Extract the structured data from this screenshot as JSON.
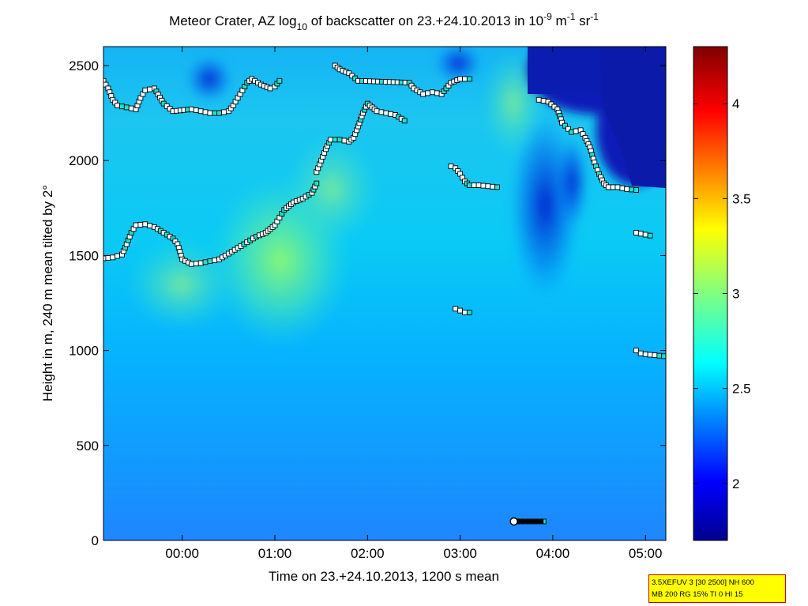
{
  "chart_data": {
    "type": "heatmap",
    "title": {
      "pre": "Meteor Crater, AZ log",
      "sub": "10",
      "mid": " of backscatter on 23.+24.10.2013 in 10",
      "sup1": "-9",
      "mid2": " m",
      "sup2": "-1",
      "mid3": " sr",
      "sup3": "-1"
    },
    "xlabel": "Time on 23.+24.10.2013, 1200 s mean",
    "ylabel": "Height in m, 240 m mean tilted by 2°",
    "xlim_hours": [
      -0.85,
      5.22
    ],
    "ylim": [
      0,
      2600
    ],
    "x_ticks": [
      {
        "value": 0,
        "label": "00:00"
      },
      {
        "value": 1,
        "label": "01:00"
      },
      {
        "value": 2,
        "label": "02:00"
      },
      {
        "value": 3,
        "label": "03:00"
      },
      {
        "value": 4,
        "label": "04:00"
      },
      {
        "value": 5,
        "label": "05:00"
      }
    ],
    "y_ticks": [
      {
        "value": 0,
        "label": "0"
      },
      {
        "value": 500,
        "label": "500"
      },
      {
        "value": 1000,
        "label": "1000"
      },
      {
        "value": 1500,
        "label": "1500"
      },
      {
        "value": 2000,
        "label": "2000"
      },
      {
        "value": 2500,
        "label": "2500"
      }
    ],
    "colorbar": {
      "range": [
        1.7,
        4.3
      ],
      "ticks": [
        {
          "value": 2,
          "label": "2"
        },
        {
          "value": 2.5,
          "label": "2.5"
        },
        {
          "value": 3,
          "label": "3"
        },
        {
          "value": 3.5,
          "label": "3.5"
        },
        {
          "value": 4,
          "label": "4"
        }
      ],
      "colormap": "jet"
    },
    "cloud_layers": [
      {
        "name": "layer-1",
        "points": [
          [
            -0.85,
            1485
          ],
          [
            -0.75,
            1490
          ],
          [
            -0.65,
            1505
          ],
          [
            -0.6,
            1560
          ],
          [
            -0.55,
            1620
          ],
          [
            -0.5,
            1660
          ],
          [
            -0.4,
            1665
          ],
          [
            -0.3,
            1650
          ],
          [
            -0.2,
            1620
          ],
          [
            -0.1,
            1590
          ],
          [
            -0.05,
            1560
          ],
          [
            0,
            1480
          ],
          [
            0.1,
            1455
          ],
          [
            0.2,
            1460
          ],
          [
            0.3,
            1470
          ],
          [
            0.4,
            1480
          ],
          [
            0.5,
            1510
          ],
          [
            0.6,
            1540
          ],
          [
            0.7,
            1570
          ],
          [
            0.8,
            1600
          ],
          [
            0.9,
            1620
          ],
          [
            0.95,
            1640
          ],
          [
            1.0,
            1660
          ],
          [
            1.05,
            1700
          ],
          [
            1.1,
            1740
          ],
          [
            1.15,
            1760
          ],
          [
            1.2,
            1780
          ],
          [
            1.3,
            1800
          ],
          [
            1.4,
            1830
          ],
          [
            1.45,
            1880
          ]
        ]
      },
      {
        "name": "layer-2",
        "points": [
          [
            1.45,
            1940
          ],
          [
            1.5,
            2000
          ],
          [
            1.55,
            2060
          ],
          [
            1.6,
            2110
          ],
          [
            1.7,
            2110
          ],
          [
            1.8,
            2100
          ],
          [
            1.85,
            2120
          ],
          [
            1.9,
            2180
          ],
          [
            1.95,
            2250
          ],
          [
            2.0,
            2300
          ],
          [
            2.05,
            2280
          ],
          [
            2.1,
            2260
          ],
          [
            2.2,
            2250
          ],
          [
            2.3,
            2240
          ],
          [
            2.4,
            2210
          ]
        ]
      },
      {
        "name": "layer-3",
        "points": [
          [
            -0.85,
            2420
          ],
          [
            -0.8,
            2380
          ],
          [
            -0.75,
            2320
          ],
          [
            -0.7,
            2290
          ],
          [
            -0.6,
            2280
          ],
          [
            -0.5,
            2270
          ],
          [
            -0.45,
            2330
          ],
          [
            -0.4,
            2370
          ],
          [
            -0.3,
            2380
          ],
          [
            -0.2,
            2300
          ],
          [
            -0.1,
            2260
          ],
          [
            0.1,
            2270
          ],
          [
            0.2,
            2260
          ],
          [
            0.3,
            2250
          ],
          [
            0.4,
            2250
          ],
          [
            0.5,
            2260
          ],
          [
            0.55,
            2290
          ],
          [
            0.6,
            2330
          ],
          [
            0.65,
            2370
          ],
          [
            0.7,
            2410
          ],
          [
            0.75,
            2430
          ],
          [
            0.85,
            2400
          ],
          [
            0.95,
            2380
          ],
          [
            1.0,
            2390
          ],
          [
            1.05,
            2420
          ]
        ]
      },
      {
        "name": "layer-4",
        "points": [
          [
            1.65,
            2500
          ],
          [
            1.7,
            2480
          ],
          [
            1.8,
            2460
          ],
          [
            1.9,
            2420
          ],
          [
            2.45,
            2410
          ],
          [
            2.5,
            2380
          ],
          [
            2.6,
            2350
          ],
          [
            2.7,
            2360
          ],
          [
            2.8,
            2350
          ],
          [
            2.85,
            2380
          ],
          [
            2.9,
            2410
          ],
          [
            3.0,
            2430
          ],
          [
            3.1,
            2430
          ]
        ]
      },
      {
        "name": "layer-5",
        "points": [
          [
            2.9,
            1970
          ],
          [
            2.95,
            1960
          ],
          [
            3.0,
            1930
          ],
          [
            3.05,
            1890
          ],
          [
            3.1,
            1870
          ],
          [
            3.2,
            1870
          ],
          [
            3.3,
            1865
          ],
          [
            3.4,
            1860
          ]
        ]
      },
      {
        "name": "layer-6",
        "points": [
          [
            3.85,
            2320
          ],
          [
            3.95,
            2310
          ],
          [
            4.05,
            2270
          ],
          [
            4.1,
            2200
          ],
          [
            4.2,
            2150
          ],
          [
            4.3,
            2160
          ],
          [
            4.35,
            2120
          ],
          [
            4.4,
            2070
          ],
          [
            4.45,
            1990
          ],
          [
            4.5,
            1930
          ],
          [
            4.55,
            1880
          ],
          [
            4.6,
            1860
          ],
          [
            4.7,
            1860
          ],
          [
            4.8,
            1850
          ],
          [
            4.9,
            1845
          ]
        ]
      },
      {
        "name": "layer-7",
        "points": [
          [
            2.95,
            1220
          ],
          [
            3.0,
            1210
          ],
          [
            3.05,
            1200
          ],
          [
            3.1,
            1200
          ]
        ]
      },
      {
        "name": "layer-8",
        "points": [
          [
            4.9,
            1620
          ],
          [
            4.95,
            1615
          ],
          [
            5.0,
            1610
          ],
          [
            5.05,
            1605
          ]
        ]
      },
      {
        "name": "layer-9",
        "points": [
          [
            4.9,
            1000
          ],
          [
            4.95,
            985
          ],
          [
            5.0,
            980
          ],
          [
            5.1,
            975
          ],
          [
            5.2,
            970
          ]
        ]
      },
      {
        "name": "layer-10",
        "points": [
          [
            3.58,
            100
          ],
          [
            3.7,
            100
          ],
          [
            3.8,
            100
          ],
          [
            3.9,
            100
          ]
        ]
      }
    ]
  },
  "info_box": {
    "line1": "3.5XEFUV 3 [30 2500] NH 600",
    "line2": "MB 200 RG 15% TI 0 HI 15"
  },
  "colors": {
    "background": "#00aaff",
    "box_border": "#cc0000",
    "box_fill": "#ffff00",
    "marker_edge": "#000000"
  }
}
